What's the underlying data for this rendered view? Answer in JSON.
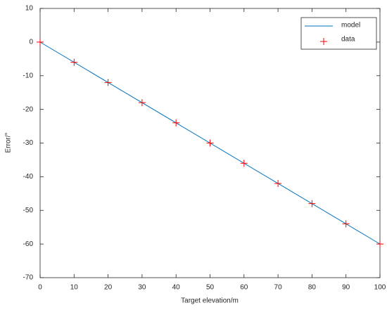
{
  "chart_data": {
    "type": "line",
    "xlabel": "Target elevation/m",
    "ylabel": "Error/°",
    "xlim": [
      0,
      100
    ],
    "xticks": [
      0,
      10,
      20,
      30,
      40,
      50,
      60,
      70,
      80,
      90,
      100
    ],
    "ylim": [
      -70,
      10
    ],
    "yticks": [
      -70,
      -60,
      -50,
      -40,
      -30,
      -20,
      -10,
      0,
      10
    ],
    "legend": "upper right",
    "series": [
      {
        "name": "model",
        "color": "#0072bd",
        "style": "line",
        "x": [
          0,
          100
        ],
        "values": [
          0,
          -60
        ]
      },
      {
        "name": "data",
        "color": "#ff0000",
        "style": "marker",
        "x": [
          0,
          10,
          20,
          30,
          40,
          50,
          60,
          70,
          80,
          90,
          100
        ],
        "values": [
          0,
          -6,
          -12,
          -18,
          -24,
          -30,
          -36,
          -42,
          -48,
          -54,
          -60
        ]
      }
    ]
  }
}
